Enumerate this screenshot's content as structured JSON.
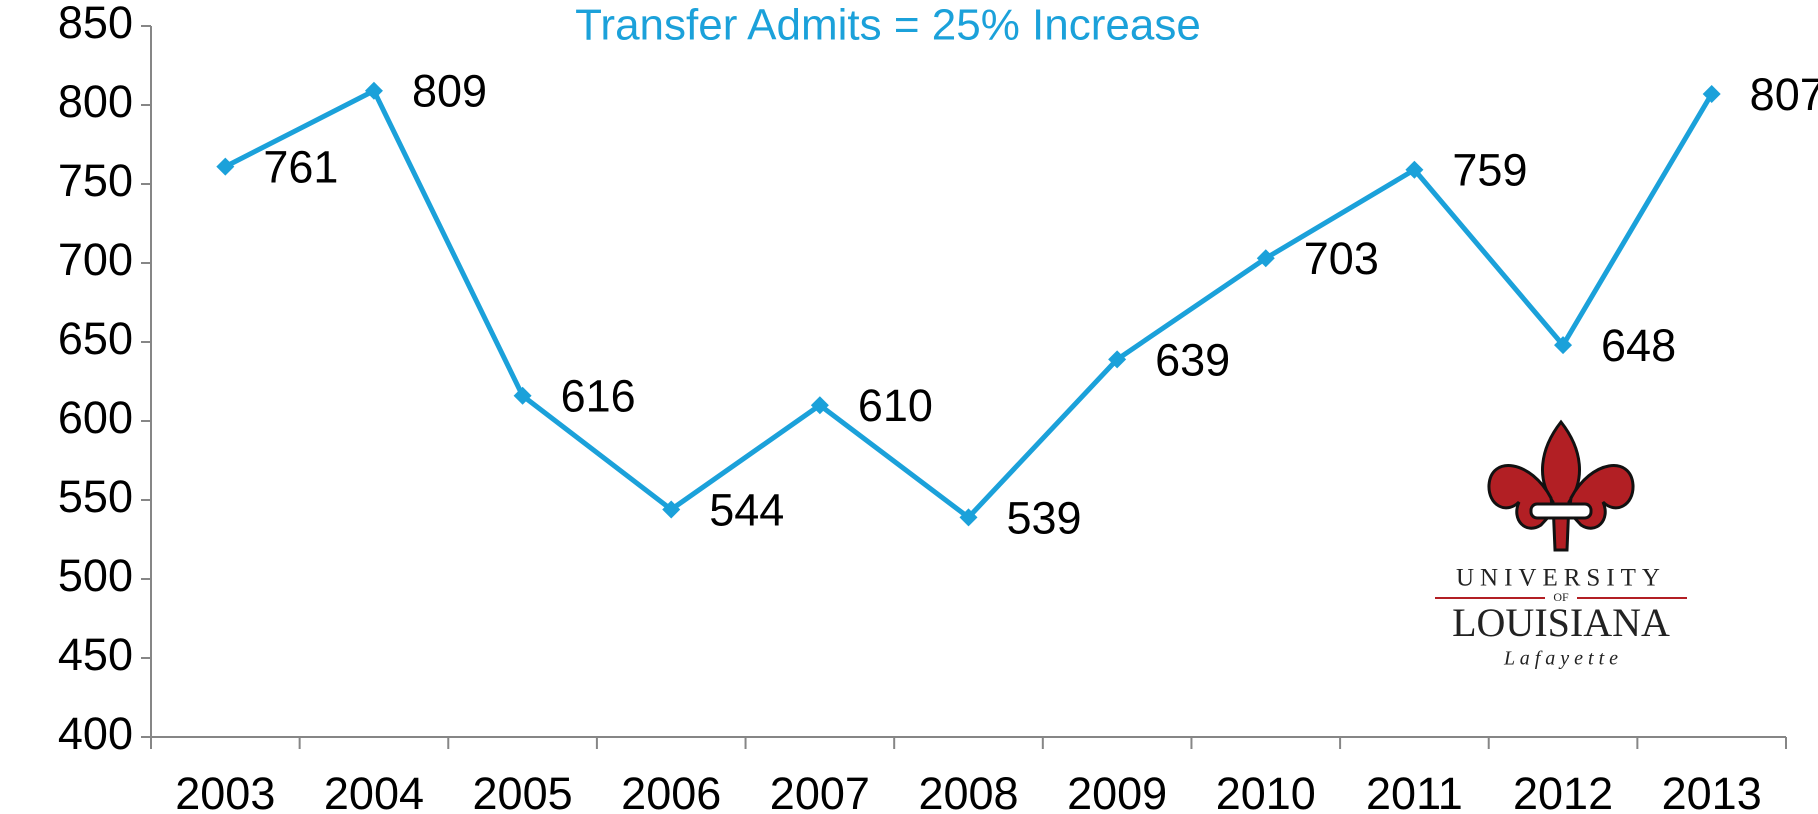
{
  "chart_data": {
    "type": "line",
    "title": "Transfer Admits = 25% Increase",
    "title_color": "#1ba1da",
    "categories": [
      "2003",
      "2004",
      "2005",
      "2006",
      "2007",
      "2008",
      "2009",
      "2010",
      "2011",
      "2012",
      "2013"
    ],
    "series": [
      {
        "color": "#1ba1da",
        "values": [
          761,
          809,
          616,
          544,
          610,
          539,
          639,
          703,
          759,
          648,
          807
        ]
      }
    ],
    "ylim": [
      400,
      850
    ],
    "yticks": [
      400,
      450,
      500,
      550,
      600,
      650,
      700,
      750,
      800,
      850
    ],
    "grid": false,
    "logo": {
      "line1": "UNIVERSITY",
      "line2": "OF",
      "line3": "LOUISIANA",
      "line4": "L a f a y e t t e"
    }
  }
}
